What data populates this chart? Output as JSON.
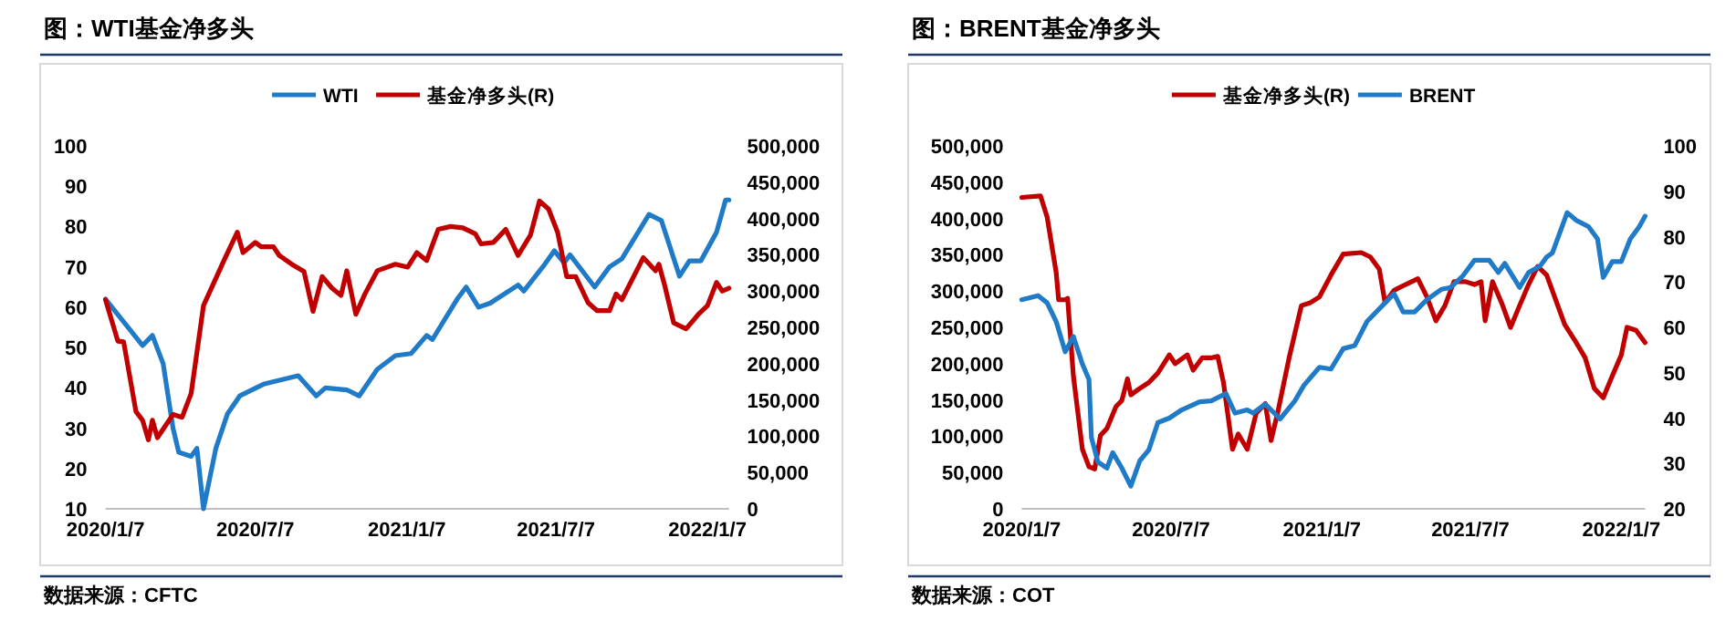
{
  "chart_data": [
    {
      "type": "line",
      "title": "图：WTI基金净多头",
      "annotations": [
        "数据来源：CFTC"
      ],
      "legend": "top",
      "grid": false,
      "xlim": [
        "2020-01-07",
        "2022-02-02"
      ],
      "xticks": [
        {
          "value": "2020-01-07",
          "label": "2020/1/7"
        },
        {
          "value": "2020-07-07",
          "label": "2020/7/7"
        },
        {
          "value": "2021-01-07",
          "label": "2021/1/7"
        },
        {
          "value": "2021-07-07",
          "label": "2021/7/7"
        },
        {
          "value": "2022-01-07",
          "label": "2022/1/7"
        }
      ],
      "ylim": [
        10,
        100
      ],
      "yticks": [
        10,
        20,
        30,
        40,
        50,
        60,
        70,
        80,
        90,
        100
      ],
      "y2lim": [
        0,
        500000
      ],
      "y2ticks": [
        0,
        {
          "value": 50000,
          "label": "50,000"
        },
        {
          "value": 100000,
          "label": "100,000"
        },
        {
          "value": 150000,
          "label": "150,000"
        },
        {
          "value": 200000,
          "label": "200,000"
        },
        {
          "value": 250000,
          "label": "250,000"
        },
        {
          "value": 300000,
          "label": "300,000"
        },
        {
          "value": 350000,
          "label": "350,000"
        },
        {
          "value": 400000,
          "label": "400,000"
        },
        {
          "value": 450000,
          "label": "450,000"
        },
        {
          "value": 500000,
          "label": "500,000"
        }
      ],
      "series": [
        {
          "name": "WTI",
          "color": "#1f7bc8",
          "x": [
            "2020-01-07",
            "2020-02-21",
            "2020-03-04",
            "2020-03-17",
            "2020-03-29",
            "2020-04-05",
            "2020-04-20",
            "2020-04-27",
            "2020-05-05",
            "2020-05-20",
            "2020-06-03",
            "2020-06-18",
            "2020-07-18",
            "2020-08-28",
            "2020-09-19",
            "2020-09-30",
            "2020-10-26",
            "2020-11-10",
            "2020-12-02",
            "2020-12-24",
            "2021-01-12",
            "2021-01-31",
            "2021-02-07",
            "2021-03-09",
            "2021-03-20",
            "2021-04-04",
            "2021-04-18",
            "2021-05-22",
            "2021-05-29",
            "2021-06-21",
            "2021-07-05",
            "2021-07-17",
            "2021-07-24",
            "2021-08-23",
            "2021-09-10",
            "2021-09-25",
            "2021-10-28",
            "2021-11-12",
            "2021-12-04",
            "2021-12-16",
            "2021-12-30",
            "2022-01-18",
            "2022-01-29",
            "2022-02-02"
          ],
          "values": [
            62,
            50.5,
            53,
            46,
            30,
            24,
            23,
            25,
            10,
            25,
            33.5,
            38,
            41,
            43,
            38,
            40,
            39.5,
            38,
            44.6,
            48,
            48.5,
            53,
            52,
            62,
            65,
            60,
            61,
            65.5,
            64,
            70,
            74,
            71,
            73,
            65,
            70,
            72,
            83,
            81.5,
            67.7,
            71.5,
            71.5,
            78.6,
            86.6,
            86.6
          ]
        },
        {
          "name": "基金净多头(R)",
          "color": "#c00000",
          "axis": "y2",
          "x": [
            "2020-01-07",
            "2020-01-22",
            "2020-01-29",
            "2020-02-13",
            "2020-02-21",
            "2020-02-28",
            "2020-03-04",
            "2020-03-10",
            "2020-03-29",
            "2020-04-09",
            "2020-04-20",
            "2020-05-05",
            "2020-05-31",
            "2020-06-15",
            "2020-06-22",
            "2020-07-07",
            "2020-07-14",
            "2020-07-29",
            "2020-08-05",
            "2020-08-20",
            "2020-09-04",
            "2020-09-15",
            "2020-09-26",
            "2020-10-08",
            "2020-10-19",
            "2020-10-26",
            "2020-11-06",
            "2020-11-17",
            "2020-12-02",
            "2020-12-24",
            "2021-01-08",
            "2021-01-19",
            "2021-01-31",
            "2021-02-14",
            "2021-03-01",
            "2021-03-16",
            "2021-03-31",
            "2021-04-07",
            "2021-04-22",
            "2021-05-07",
            "2021-05-22",
            "2021-06-06",
            "2021-06-17",
            "2021-06-28",
            "2021-07-09",
            "2021-07-20",
            "2021-07-31",
            "2021-08-15",
            "2021-08-26",
            "2021-09-10",
            "2021-09-18",
            "2021-09-25",
            "2021-10-21",
            "2021-11-05",
            "2021-11-09",
            "2021-11-16",
            "2021-11-27",
            "2021-12-12",
            "2021-12-27",
            "2022-01-07",
            "2022-01-18",
            "2022-01-25",
            "2022-02-02"
          ],
          "values": [
            288000,
            231000,
            230000,
            134000,
            122000,
            95000,
            122000,
            98000,
            130000,
            126000,
            159000,
            280000,
            345000,
            381000,
            353000,
            367000,
            361000,
            361000,
            349000,
            337000,
            327000,
            272000,
            320000,
            304000,
            294000,
            328000,
            268000,
            296000,
            328000,
            337000,
            333000,
            353000,
            342000,
            385000,
            389000,
            387000,
            379000,
            365000,
            367000,
            385000,
            349000,
            377000,
            424000,
            413000,
            381000,
            320000,
            320000,
            284000,
            273000,
            273000,
            296000,
            288000,
            346000,
            328000,
            337000,
            308000,
            256000,
            248000,
            268000,
            280000,
            312000,
            300000,
            304000
          ]
        }
      ]
    },
    {
      "type": "line",
      "title": "图：BRENT基金净多头",
      "annotations": [
        "数据来源：COT"
      ],
      "legend": "top",
      "grid": false,
      "xlim": [
        "2020-01-07",
        "2022-02-05"
      ],
      "xticks": [
        {
          "value": "2020-01-07",
          "label": "2020/1/7"
        },
        {
          "value": "2020-07-07",
          "label": "2020/7/7"
        },
        {
          "value": "2021-01-07",
          "label": "2021/1/7"
        },
        {
          "value": "2021-07-07",
          "label": "2021/7/7"
        },
        {
          "value": "2022-01-07",
          "label": "2022/1/7"
        }
      ],
      "ylim": [
        0,
        500000
      ],
      "yticks": [
        0,
        {
          "value": 50000,
          "label": "50,000"
        },
        {
          "value": 100000,
          "label": "100,000"
        },
        {
          "value": 150000,
          "label": "150,000"
        },
        {
          "value": 200000,
          "label": "200,000"
        },
        {
          "value": 250000,
          "label": "250,000"
        },
        {
          "value": 300000,
          "label": "300,000"
        },
        {
          "value": 350000,
          "label": "350,000"
        },
        {
          "value": 400000,
          "label": "400,000"
        },
        {
          "value": 450000,
          "label": "450,000"
        },
        {
          "value": 500000,
          "label": "500,000"
        }
      ],
      "y2lim": [
        20,
        100
      ],
      "y2ticks": [
        20,
        30,
        40,
        50,
        60,
        70,
        80,
        90,
        100
      ],
      "series": [
        {
          "name": "基金净多头(R)",
          "color": "#c00000",
          "x": [
            "2020-01-07",
            "2020-01-30",
            "2020-02-07",
            "2020-02-18",
            "2020-02-21",
            "2020-02-29",
            "2020-03-03",
            "2020-03-10",
            "2020-03-21",
            "2020-03-29",
            "2020-04-05",
            "2020-04-12",
            "2020-04-20",
            "2020-05-01",
            "2020-05-08",
            "2020-05-15",
            "2020-05-19",
            "2020-05-30",
            "2020-06-10",
            "2020-06-21",
            "2020-07-05",
            "2020-07-12",
            "2020-07-27",
            "2020-08-03",
            "2020-08-14",
            "2020-08-25",
            "2020-09-02",
            "2020-09-09",
            "2020-09-20",
            "2020-09-27",
            "2020-10-08",
            "2020-10-19",
            "2020-10-30",
            "2020-11-06",
            "2020-11-14",
            "2020-11-28",
            "2020-12-13",
            "2020-12-24",
            "2021-01-04",
            "2021-01-18",
            "2021-02-02",
            "2021-02-24",
            "2021-03-07",
            "2021-03-18",
            "2021-03-25",
            "2021-04-05",
            "2021-04-19",
            "2021-05-04",
            "2021-05-15",
            "2021-05-26",
            "2021-06-06",
            "2021-06-17",
            "2021-07-01",
            "2021-07-12",
            "2021-07-20",
            "2021-07-25",
            "2021-08-03",
            "2021-08-14",
            "2021-08-25",
            "2021-09-05",
            "2021-09-16",
            "2021-09-27",
            "2021-10-08",
            "2021-10-30",
            "2021-11-13",
            "2021-11-24",
            "2021-12-05",
            "2021-12-16",
            "2021-12-27",
            "2022-01-07",
            "2022-01-14",
            "2022-01-25",
            "2022-02-05"
          ],
          "values": [
            429000,
            431000,
            402000,
            326000,
            288000,
            288000,
            290000,
            183000,
            82000,
            58000,
            55000,
            101000,
            111000,
            141000,
            149000,
            179000,
            157000,
            166000,
            174000,
            187000,
            212000,
            200000,
            212000,
            191000,
            208000,
            208000,
            210000,
            174000,
            82000,
            103000,
            82000,
            132000,
            145000,
            94000,
            132000,
            208000,
            280000,
            284000,
            292000,
            322000,
            351000,
            353000,
            347000,
            330000,
            284000,
            301000,
            309000,
            317000,
            292000,
            259000,
            280000,
            313000,
            313000,
            309000,
            313000,
            259000,
            313000,
            284000,
            250000,
            280000,
            309000,
            334000,
            322000,
            254000,
            229000,
            208000,
            166000,
            153000,
            183000,
            212000,
            250000,
            246000,
            229000
          ]
        },
        {
          "name": "BRENT",
          "color": "#1f7bc8",
          "axis": "y2",
          "x": [
            "2020-01-07",
            "2020-01-27",
            "2020-02-07",
            "2020-02-18",
            "2020-02-29",
            "2020-03-10",
            "2020-03-21",
            "2020-03-29",
            "2020-04-01",
            "2020-04-09",
            "2020-04-20",
            "2020-04-27",
            "2020-05-08",
            "2020-05-19",
            "2020-05-30",
            "2020-06-10",
            "2020-06-21",
            "2020-07-05",
            "2020-07-20",
            "2020-08-11",
            "2020-08-25",
            "2020-09-12",
            "2020-09-23",
            "2020-10-08",
            "2020-10-15",
            "2020-10-30",
            "2020-11-17",
            "2020-12-05",
            "2020-12-16",
            "2021-01-04",
            "2021-01-18",
            "2021-02-02",
            "2021-02-16",
            "2021-03-03",
            "2021-03-25",
            "2021-04-05",
            "2021-04-16",
            "2021-04-30",
            "2021-05-15",
            "2021-06-02",
            "2021-06-13",
            "2021-06-28",
            "2021-07-12",
            "2021-07-30",
            "2021-08-10",
            "2021-08-18",
            "2021-09-05",
            "2021-09-16",
            "2021-09-30",
            "2021-10-08",
            "2021-10-15",
            "2021-11-02",
            "2021-11-13",
            "2021-11-28",
            "2021-12-09",
            "2021-12-16",
            "2021-12-27",
            "2022-01-07",
            "2022-01-18",
            "2022-01-29",
            "2022-02-05"
          ],
          "values": [
            66.1,
            67,
            65.4,
            61.3,
            54.6,
            58,
            51.9,
            48.5,
            35.7,
            30.3,
            29,
            32.4,
            29,
            25,
            30.6,
            33,
            39,
            40,
            41.8,
            43.6,
            43.8,
            45.4,
            41.1,
            41.8,
            41.1,
            43.1,
            39.8,
            43.8,
            47.2,
            51.2,
            50.8,
            55.3,
            56,
            61.3,
            65.4,
            67.4,
            63.4,
            63.4,
            66.1,
            68.4,
            68.8,
            71.4,
            74.8,
            74.8,
            72.1,
            74.1,
            68.8,
            72.1,
            73.5,
            75.5,
            76.4,
            85.3,
            83.6,
            82.2,
            79.5,
            71,
            74.5,
            74.5,
            79.5,
            82.2,
            84.5
          ]
        }
      ]
    }
  ]
}
